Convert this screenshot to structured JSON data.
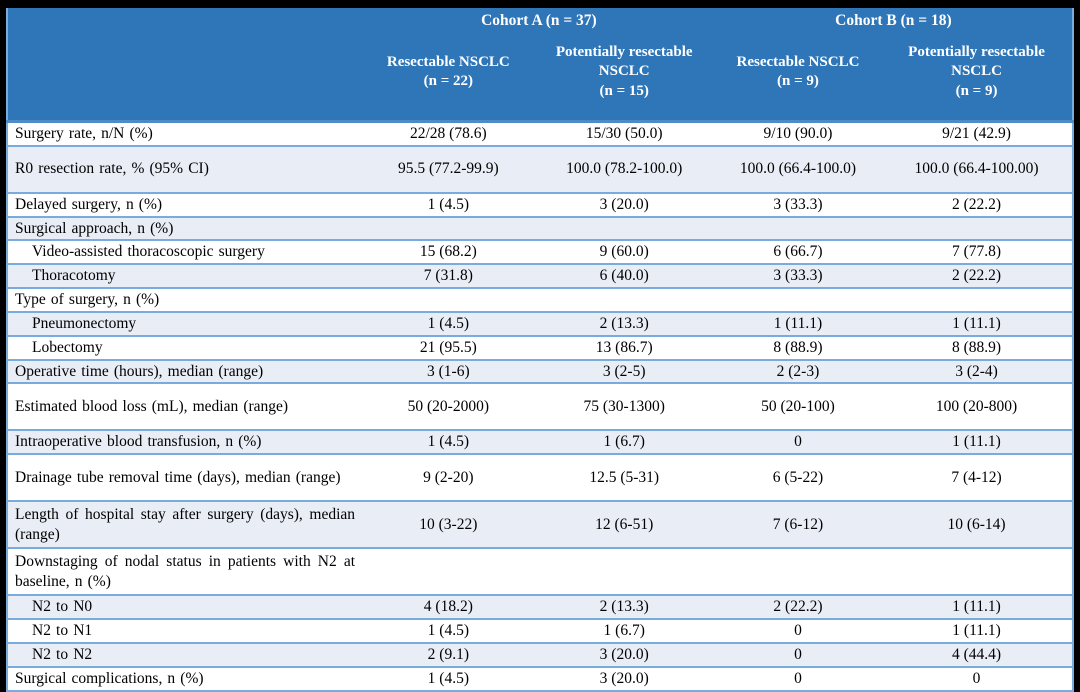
{
  "colors": {
    "frame": "#000000",
    "header_bg": "#2F76B8",
    "header_text": "#FFFFFF",
    "stripe_bg": "#E9EDF6",
    "row_border": "#79ABDC",
    "body_text": "#000000"
  },
  "header": {
    "cohort_a": {
      "label": "Cohort A (n = 37)"
    },
    "cohort_b": {
      "label": "Cohort B (n = 18)"
    },
    "columns": [
      {
        "name": "Resectable NSCLC",
        "n": "(n = 22)"
      },
      {
        "name": "Potentially resectable NSCLC",
        "n": "(n = 15)"
      },
      {
        "name": "Resectable NSCLC",
        "n": "(n = 9)"
      },
      {
        "name": "Potentially resectable NSCLC",
        "n": "(n = 9)"
      }
    ]
  },
  "rows": [
    {
      "label": "Surgery rate, n/N (%)",
      "values": [
        "22/28 (78.6)",
        "15/30 (50.0)",
        "9/10 (90.0)",
        "9/21 (42.9)"
      ],
      "indent": false,
      "tall": false,
      "stripe": false
    },
    {
      "label": "R0 resection rate, % (95% CI)",
      "values": [
        "95.5 (77.2-99.9)",
        "100.0 (78.2-100.0)",
        "100.0 (66.4-100.0)",
        "100.0 (66.4-100.00)"
      ],
      "indent": false,
      "tall": true,
      "stripe": true
    },
    {
      "label": "Delayed surgery, n (%)",
      "values": [
        "1 (4.5)",
        "3 (20.0)",
        "3 (33.3)",
        "2 (22.2)"
      ],
      "indent": false,
      "tall": false,
      "stripe": false
    },
    {
      "label": "Surgical approach, n (%)",
      "values": [
        "",
        "",
        "",
        ""
      ],
      "indent": false,
      "tall": false,
      "stripe": true
    },
    {
      "label": "Video-assisted thoracoscopic surgery",
      "values": [
        "15 (68.2)",
        "9 (60.0)",
        "6 (66.7)",
        "7 (77.8)"
      ],
      "indent": true,
      "tall": false,
      "stripe": false
    },
    {
      "label": "Thoracotomy",
      "values": [
        "7 (31.8)",
        "6 (40.0)",
        "3 (33.3)",
        "2 (22.2)"
      ],
      "indent": true,
      "tall": false,
      "stripe": true
    },
    {
      "label": "Type of surgery, n (%)",
      "values": [
        "",
        "",
        "",
        ""
      ],
      "indent": false,
      "tall": false,
      "stripe": false
    },
    {
      "label": "Pneumonectomy",
      "values": [
        "1 (4.5)",
        "2 (13.3)",
        "1 (11.1)",
        "1 (11.1)"
      ],
      "indent": true,
      "tall": false,
      "stripe": true
    },
    {
      "label": "Lobectomy",
      "values": [
        "21 (95.5)",
        "13 (86.7)",
        "8 (88.9)",
        "8 (88.9)"
      ],
      "indent": true,
      "tall": false,
      "stripe": false
    },
    {
      "label": "Operative time (hours), median (range)",
      "values": [
        "3 (1-6)",
        "3 (2-5)",
        "2 (2-3)",
        "3 (2-4)"
      ],
      "indent": false,
      "tall": false,
      "stripe": true
    },
    {
      "label": "Estimated blood loss (mL), median (range)",
      "values": [
        "50 (20-2000)",
        "75 (30-1300)",
        "50 (20-100)",
        "100 (20-800)"
      ],
      "indent": false,
      "tall": true,
      "stripe": false
    },
    {
      "label": "Intraoperative blood transfusion, n (%)",
      "values": [
        "1 (4.5)",
        "1 (6.7)",
        "0",
        "1 (11.1)"
      ],
      "indent": false,
      "tall": false,
      "stripe": true
    },
    {
      "label": "Drainage tube removal time (days), median (range)",
      "values": [
        "9 (2-20)",
        "12.5 (5-31)",
        "6 (5-22)",
        "7 (4-12)"
      ],
      "indent": false,
      "tall": true,
      "stripe": false
    },
    {
      "label": "Length of hospital stay after surgery (days), median (range)",
      "values": [
        "10 (3-22)",
        "12 (6-51)",
        "7 (6-12)",
        "10 (6-14)"
      ],
      "indent": false,
      "tall": true,
      "stripe": true
    },
    {
      "label": "Downstaging of nodal status in patients with N2 at baseline, n (%)",
      "values": [
        "",
        "",
        "",
        ""
      ],
      "indent": false,
      "tall": true,
      "stripe": false
    },
    {
      "label": "N2 to N0",
      "values": [
        "4 (18.2)",
        "2 (13.3)",
        "2 (22.2)",
        "1 (11.1)"
      ],
      "indent": true,
      "tall": false,
      "stripe": true
    },
    {
      "label": "N2 to N1",
      "values": [
        "1 (4.5)",
        "1 (6.7)",
        "0",
        "1 (11.1)"
      ],
      "indent": true,
      "tall": false,
      "stripe": false
    },
    {
      "label": "N2 to N2",
      "values": [
        "2 (9.1)",
        "3 (20.0)",
        "0",
        "4 (44.4)"
      ],
      "indent": true,
      "tall": false,
      "stripe": true
    },
    {
      "label": "Surgical complications, n (%)",
      "values": [
        "1 (4.5)",
        "3 (20.0)",
        "0",
        "0"
      ],
      "indent": false,
      "tall": false,
      "stripe": false
    }
  ]
}
